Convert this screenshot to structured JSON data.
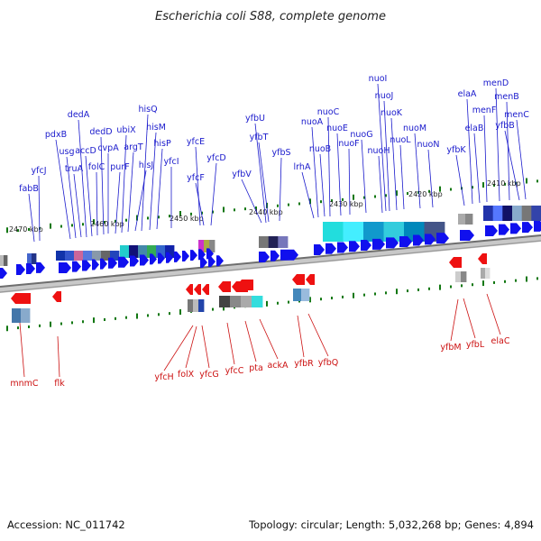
{
  "title": "Escherichia coli S88, complete genome",
  "footer": {
    "accession": "Accession: NC_011742",
    "topology": "Topology: circular; Length: 5,032,268 bp; Genes: 4,894"
  },
  "colors": {
    "forward_gene": "#1010ee",
    "reverse_gene": "#ee1111",
    "backbone": "#888888",
    "tick": "#117711"
  },
  "scale": [
    {
      "label": "2470 kbp",
      "kbp": 2470
    },
    {
      "label": "2460 kbp",
      "kbp": 2460
    },
    {
      "label": "2450 kbp",
      "kbp": 2450
    },
    {
      "label": "2440 kbp",
      "kbp": 2440
    },
    {
      "label": "2430 kbp",
      "kbp": 2430
    },
    {
      "label": "2420 kbp",
      "kbp": 2420
    },
    {
      "label": "2410 kbp",
      "kbp": 2410
    }
  ],
  "forward_genes": [
    "fabB",
    "yfcJ",
    "pdxB",
    "usg",
    "truA",
    "dedA",
    "accD",
    "folC",
    "dedD",
    "cvpA",
    "purF",
    "ubiX",
    "argT",
    "hisJ",
    "hisQ",
    "hisM",
    "hisP",
    "yfcI",
    "yfcE",
    "yfcF",
    "yfcD",
    "yfbV",
    "yfbU",
    "yfbT",
    "yfbS",
    "lrhA",
    "nuoA",
    "nuoB",
    "nuoC",
    "nuoE",
    "nuoF",
    "nuoG",
    "nuoH",
    "nuoI",
    "nuoJ",
    "nuoK",
    "nuoL",
    "nuoM",
    "nuoN",
    "yfbK",
    "elaA",
    "elaB",
    "menF",
    "menD",
    "menB",
    "yfbB",
    "menC"
  ],
  "reverse_genes": [
    "mnmC",
    "flk",
    "yfcH",
    "folX",
    "yfcG",
    "yfcC",
    "pta",
    "ackA",
    "yfbR",
    "yfbQ",
    "yfbM",
    "yfbL",
    "elaC"
  ]
}
